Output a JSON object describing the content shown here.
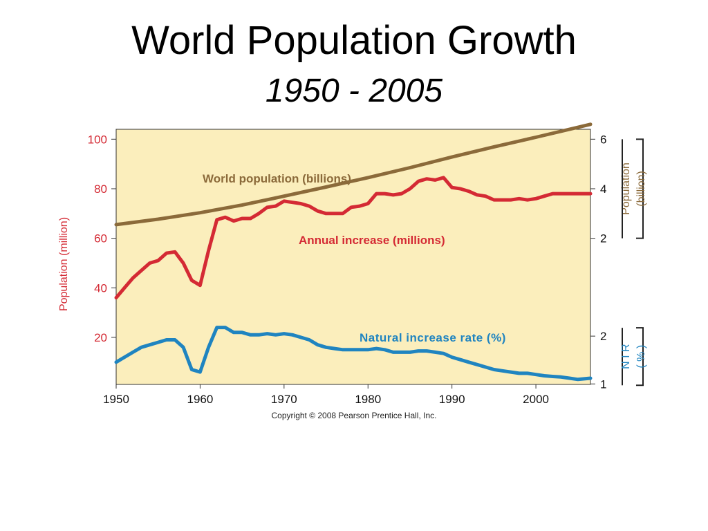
{
  "title": "World Population Growth",
  "subtitle": "1950 - 2005",
  "copyright": "Copyright © 2008 Pearson Prentice Hall, Inc.",
  "colors": {
    "plot_background": "#fbeebc",
    "population": "#8b6a3a",
    "annual_increase": "#d42a34",
    "nir": "#1f84c0",
    "axis": "#333333"
  },
  "chart_data": {
    "type": "line",
    "title": "World Population Growth",
    "subtitle": "1950 - 2005",
    "xlabel": "",
    "x_ticks": [
      1950,
      1960,
      1970,
      1980,
      1990,
      2000
    ],
    "xlim": [
      1950,
      2006.5
    ],
    "left_axis": {
      "label": "Population (million)",
      "ticks": [
        20,
        40,
        60,
        80,
        100
      ],
      "range": [
        1,
        104
      ]
    },
    "right_axis_population": {
      "label_line1": "Population",
      "label_line2": "(billion)",
      "ticks": [
        2,
        4,
        6
      ],
      "mapping": [
        [
          2,
          60
        ],
        [
          6,
          100
        ]
      ]
    },
    "right_axis_nir": {
      "label_line1": "N I R",
      "label_line2": "( % )",
      "ticks": [
        1,
        2
      ],
      "mapping": [
        [
          1,
          1.2
        ],
        [
          2,
          20.5
        ]
      ]
    },
    "series": [
      {
        "name": "World population (billions)",
        "axis": "population",
        "x": [
          1950,
          1955,
          1960,
          1965,
          1970,
          1975,
          1980,
          1985,
          1990,
          1995,
          2000,
          2006.5
        ],
        "values": [
          2.55,
          2.77,
          3.03,
          3.34,
          3.7,
          4.07,
          4.45,
          4.85,
          5.28,
          5.69,
          6.08,
          6.6
        ]
      },
      {
        "name": "Annual increase (millions)",
        "axis": "left",
        "x": [
          1950,
          1951,
          1952,
          1953,
          1954,
          1955,
          1956,
          1957,
          1958,
          1959,
          1960,
          1961,
          1962,
          1963,
          1964,
          1965,
          1966,
          1967,
          1968,
          1969,
          1970,
          1971,
          1972,
          1973,
          1974,
          1975,
          1976,
          1977,
          1978,
          1979,
          1980,
          1981,
          1982,
          1983,
          1984,
          1985,
          1986,
          1987,
          1988,
          1989,
          1990,
          1991,
          1992,
          1993,
          1994,
          1995,
          1996,
          1997,
          1998,
          1999,
          2000,
          2001,
          2002,
          2003,
          2004,
          2005,
          2006.5
        ],
        "values": [
          36,
          40,
          44,
          47,
          50,
          51,
          54,
          54.5,
          50,
          43,
          41,
          55,
          67.5,
          68.5,
          67,
          68,
          68,
          70,
          72.5,
          73,
          75,
          74.5,
          74,
          73,
          71,
          70,
          70,
          70,
          72.5,
          73,
          74,
          78,
          78,
          77.5,
          78,
          80,
          83,
          84,
          83.5,
          84.5,
          80.5,
          80,
          79,
          77.5,
          77,
          75.5,
          75.5,
          75.5,
          76,
          75.5,
          76,
          77,
          78,
          78,
          78,
          78,
          78
        ]
      },
      {
        "name": "Natural increase rate (%)",
        "axis": "left",
        "x": [
          1950,
          1951,
          1952,
          1953,
          1954,
          1955,
          1956,
          1957,
          1958,
          1959,
          1960,
          1961,
          1962,
          1963,
          1964,
          1965,
          1966,
          1967,
          1968,
          1969,
          1970,
          1971,
          1972,
          1973,
          1974,
          1975,
          1976,
          1977,
          1978,
          1979,
          1980,
          1981,
          1982,
          1983,
          1984,
          1985,
          1986,
          1987,
          1988,
          1989,
          1990,
          1991,
          1992,
          1993,
          1994,
          1995,
          1996,
          1997,
          1998,
          1999,
          2000,
          2001,
          2002,
          2003,
          2004,
          2005,
          2006.5
        ],
        "values": [
          10,
          12,
          14,
          16,
          17,
          18,
          19,
          19,
          16,
          7,
          6,
          16,
          24,
          24,
          22,
          22,
          21,
          21,
          21.5,
          21,
          21.5,
          21,
          20,
          19,
          17,
          16,
          15.5,
          15,
          15,
          15,
          15,
          15.5,
          15,
          14,
          14,
          14,
          14.5,
          14.5,
          14,
          13.5,
          12,
          11,
          10,
          9,
          8,
          7,
          6.5,
          6,
          5.5,
          5.5,
          5,
          4.5,
          4.2,
          4,
          3.5,
          3,
          3.5
        ]
      }
    ]
  }
}
